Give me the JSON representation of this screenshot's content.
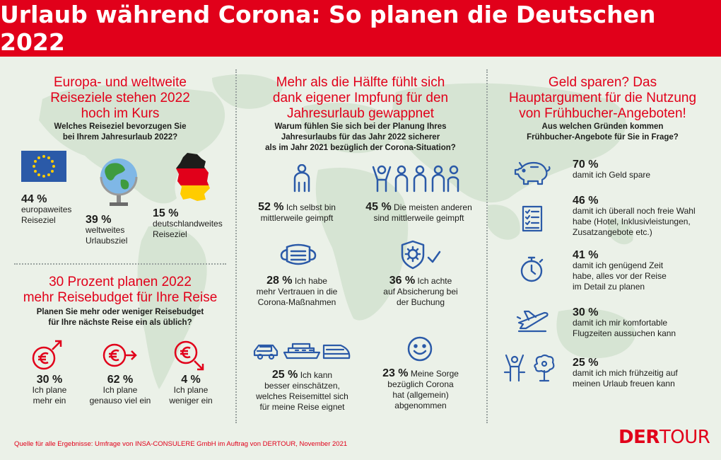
{
  "header": {
    "title": "Urlaub während Corona: So planen die Deutschen 2022"
  },
  "colors": {
    "brand_red": "#e1001a",
    "icon_blue": "#2b5aa8",
    "text": "#1d1d1b"
  },
  "left_top": {
    "title": [
      "Europa- und weltweite",
      "Reiseziele stehen 2022",
      "hoch im Kurs"
    ],
    "question": [
      "Welches Reiseziel bevorzugen Sie",
      "bei Ihrem Jahresurlaub 2022?"
    ],
    "items": [
      {
        "icon": "eu-flag-icon",
        "pct": "44 %",
        "text": [
          "europaweites",
          "Reiseziel"
        ]
      },
      {
        "icon": "globe-icon",
        "pct": "39 %",
        "text": [
          "weltweites",
          "Urlaubsziel"
        ]
      },
      {
        "icon": "germany-map-icon",
        "pct": "15 %",
        "text": [
          "deutschlandweites",
          "Reiseziel"
        ]
      }
    ]
  },
  "left_bottom": {
    "title": [
      "30 Prozent planen 2022",
      "mehr Reisebudget für Ihre Reise"
    ],
    "question": [
      "Planen Sie mehr oder weniger Reisebudget",
      "für Ihre nächste Reise ein als üblich?"
    ],
    "items": [
      {
        "icon": "euro-up-icon",
        "pct": "30 %",
        "text": [
          "Ich plane",
          "mehr ein"
        ]
      },
      {
        "icon": "euro-right-icon",
        "pct": "62 %",
        "text": [
          "Ich plane",
          "genauso viel ein"
        ]
      },
      {
        "icon": "euro-down-icon",
        "pct": "4 %",
        "text": [
          "Ich plane",
          "weniger ein"
        ]
      }
    ]
  },
  "middle": {
    "title": [
      "Mehr als die Hälfte fühlt sich",
      "dank eigener Impfung für den",
      "Jahresurlaub gewappnet"
    ],
    "question": [
      "Warum fühlen Sie sich bei der Planung Ihres",
      "Jahresurlaubs für das Jahr 2022 sicherer",
      "als im Jahr 2021 bezüglich der Corona-Situation?"
    ],
    "items": [
      {
        "icon": "person-icon",
        "pct": "52 %",
        "text": [
          "Ich selbst bin",
          "mittlerweile geimpft"
        ]
      },
      {
        "icon": "group-icon",
        "pct": "45 %",
        "text": [
          "Die meisten anderen",
          "sind mittlerweile geimpft"
        ]
      },
      {
        "icon": "mask-icon",
        "pct": "28 %",
        "text": [
          "Ich habe",
          "mehr Vertrauen in die",
          "Corona-Maßnahmen"
        ]
      },
      {
        "icon": "shield-virus-icon",
        "pct": "36 %",
        "text": [
          "Ich achte",
          "auf Absicherung bei",
          "der Buchung"
        ]
      },
      {
        "icon": "transport-icon",
        "pct": "25 %",
        "text": [
          "Ich kann",
          "besser einschätzen,",
          "welches Reisemittel sich",
          "für meine Reise eignet"
        ]
      },
      {
        "icon": "smiley-icon",
        "pct": "23 %",
        "text": [
          "Meine Sorge",
          "bezüglich Corona",
          "hat (allgemein)",
          "abgenommen"
        ]
      }
    ]
  },
  "right": {
    "title": [
      "Geld sparen? Das",
      "Hauptargument für die Nutzung",
      "von Frühbucher-Angeboten!"
    ],
    "question": [
      "Aus welchen Gründen kommen",
      "Frühbucher-Angebote für Sie in Frage?"
    ],
    "items": [
      {
        "icon": "piggy-bank-icon",
        "pct": "70 %",
        "text": [
          "damit ich Geld spare"
        ]
      },
      {
        "icon": "checklist-icon",
        "pct": "46 %",
        "text": [
          "damit ich überall noch freie Wahl",
          "habe (Hotel, Inklusivleistungen,",
          "Zusatzangebote etc.)"
        ]
      },
      {
        "icon": "stopwatch-icon",
        "pct": "41 %",
        "text": [
          "damit ich genügend Zeit",
          "habe, alles vor der Reise",
          "im Detail zu planen"
        ]
      },
      {
        "icon": "airplane-icon",
        "pct": "30 %",
        "text": [
          "damit ich mir komfortable",
          "Flugzeiten aussuchen kann"
        ]
      },
      {
        "icon": "celebration-icon",
        "pct": "25 %",
        "text": [
          "damit ich mich frühzeitig auf",
          "meinen Urlaub freuen kann"
        ]
      }
    ]
  },
  "footer": {
    "source": "Quelle für alle Ergebnisse: Umfrage von INSA-CONSULERE GmbH im Auftrag von DERTOUR, November 2021",
    "logo_bold": "DER",
    "logo_light": "TOUR"
  }
}
